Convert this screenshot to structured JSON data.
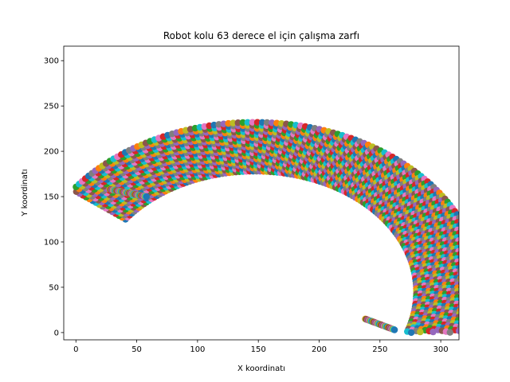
{
  "chart_data": {
    "type": "scatter",
    "title": "Robot kolu 63 derece el için çalışma zarfı",
    "xlabel": "X koordinatı",
    "ylabel": "Y koordinatı",
    "xlim": [
      -10,
      315
    ],
    "ylim": [
      -8,
      316
    ],
    "xticks": [
      "0",
      "50",
      "100",
      "150",
      "200",
      "250",
      "300"
    ],
    "yticks": [
      "0",
      "50",
      "100",
      "150",
      "200",
      "250",
      "300"
    ],
    "grid": false,
    "legend": "none",
    "envelope": {
      "center": [
        147,
        45
      ],
      "outer_radius": 187,
      "inner_radius": 133,
      "start_angle_deg": 143,
      "end_angle_deg": -40,
      "end_left": [
        28,
        148
      ],
      "end_bottom": [
        238,
        0
      ]
    },
    "point_colors": [
      "#1f77b4",
      "#ff7f0e",
      "#2ca02c",
      "#d62728",
      "#9467bd",
      "#8c564b",
      "#e377c2",
      "#7f7f7f",
      "#bcbd22",
      "#17becf"
    ]
  }
}
